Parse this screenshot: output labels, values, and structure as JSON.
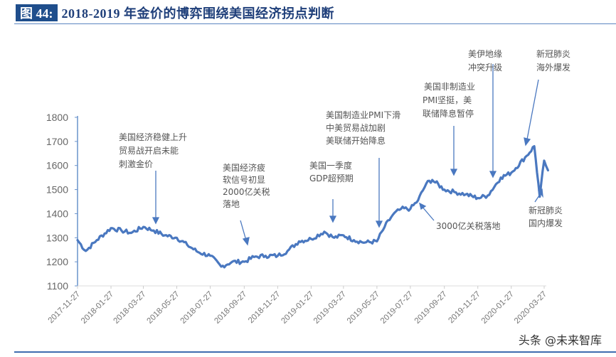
{
  "header": {
    "figure_label": "图 44:",
    "title": "2018-2019 年金价的博弈围绕美国经济拐点判断"
  },
  "watermark": "头条 @未来智库",
  "colors": {
    "line": "#4a78c0",
    "axis": "#6a93cc",
    "title_bg": "#1f4e8c",
    "title_text": "#1f3f7a"
  },
  "chart_data": {
    "type": "line",
    "title": "2018-2019 年金价的博弈围绕美国经济拐点判断",
    "xlabel": "",
    "ylabel": "",
    "ylim": [
      1100,
      1800
    ],
    "yticks": [
      1100,
      1200,
      1300,
      1400,
      1500,
      1600,
      1700,
      1800
    ],
    "xticks": [
      "2017-11-27",
      "2018-01-27",
      "2018-03-27",
      "2018-05-27",
      "2018-07-27",
      "2018-09-27",
      "2018-11-27",
      "2019-01-27",
      "2019-03-27",
      "2019-05-27",
      "2019-07-27",
      "2019-09-27",
      "2019-11-27",
      "2020-01-27",
      "2020-03-27"
    ],
    "grid": false,
    "legend": null,
    "series": [
      {
        "name": "金价",
        "x": [
          "2017-11-27",
          "2017-12-12",
          "2018-01-01",
          "2018-01-27",
          "2018-02-15",
          "2018-03-05",
          "2018-03-27",
          "2018-04-15",
          "2018-05-05",
          "2018-05-27",
          "2018-06-15",
          "2018-07-05",
          "2018-07-27",
          "2018-08-16",
          "2018-09-05",
          "2018-09-27",
          "2018-10-15",
          "2018-11-05",
          "2018-11-27",
          "2018-12-15",
          "2019-01-05",
          "2019-01-27",
          "2019-02-20",
          "2019-03-10",
          "2019-03-27",
          "2019-04-15",
          "2019-05-05",
          "2019-05-27",
          "2019-06-10",
          "2019-06-25",
          "2019-07-10",
          "2019-07-27",
          "2019-08-10",
          "2019-08-25",
          "2019-09-05",
          "2019-09-27",
          "2019-10-15",
          "2019-11-05",
          "2019-11-27",
          "2019-12-15",
          "2020-01-08",
          "2020-01-27",
          "2020-02-24",
          "2020-03-09",
          "2020-03-19",
          "2020-03-27",
          "2020-04-03"
        ],
        "values": [
          1290,
          1245,
          1290,
          1340,
          1330,
          1320,
          1345,
          1330,
          1310,
          1300,
          1270,
          1240,
          1225,
          1180,
          1200,
          1200,
          1220,
          1225,
          1225,
          1245,
          1285,
          1295,
          1325,
          1300,
          1310,
          1290,
          1280,
          1285,
          1345,
          1395,
          1420,
          1420,
          1455,
          1525,
          1540,
          1500,
          1490,
          1480,
          1465,
          1475,
          1550,
          1570,
          1640,
          1680,
          1470,
          1620,
          1580
        ]
      }
    ],
    "annotations": [
      {
        "text": "美国经济稳健上升\n贸易战开启未能\n刺激金价",
        "date": "2018-03-27"
      },
      {
        "text": "美国经济疲\n软信号初显\n2000亿关税\n落地",
        "date": "2018-09-27"
      },
      {
        "text": "美国一季度\nGDP超预期",
        "date": "2019-04-05"
      },
      {
        "text": "美国制造业PMI下滑\n中美贸易战加剧\n美联储开始降息",
        "date": "2019-06-01"
      },
      {
        "text": "美国非制造业\nPMI坚挺，美\n联储降息暂停",
        "date": "2019-10-20"
      },
      {
        "text": "3000亿关税落地",
        "date": "2019-09-01"
      },
      {
        "text": "美伊地缘\n冲突升级",
        "date": "2020-01-08"
      },
      {
        "text": "新冠肺炎\n海外爆发",
        "date": "2020-02-24"
      },
      {
        "text": "新冠肺炎\n国内爆发",
        "date": "2020-02-01"
      }
    ]
  },
  "annotations": {
    "a1": [
      "美国经济稳健上升",
      "贸易战开启未能",
      "刺激金价"
    ],
    "a2": [
      "美国经济疲",
      "软信号初显",
      "2000亿关税",
      "落地"
    ],
    "a3": [
      "美国一季度",
      "GDP超预期"
    ],
    "a4": [
      "美国制造业PMI下滑",
      "中美贸易战加剧",
      "美联储开始降息"
    ],
    "a5": [
      "美国非制造业",
      "PMI坚挺，美",
      "联储降息暂停"
    ],
    "a6": [
      "3000亿关税落地"
    ],
    "a7": [
      "美伊地缘",
      "冲突升级"
    ],
    "a8": [
      "新冠肺炎",
      "海外爆发"
    ],
    "a9": [
      "新冠肺炎",
      "国内爆发"
    ]
  }
}
